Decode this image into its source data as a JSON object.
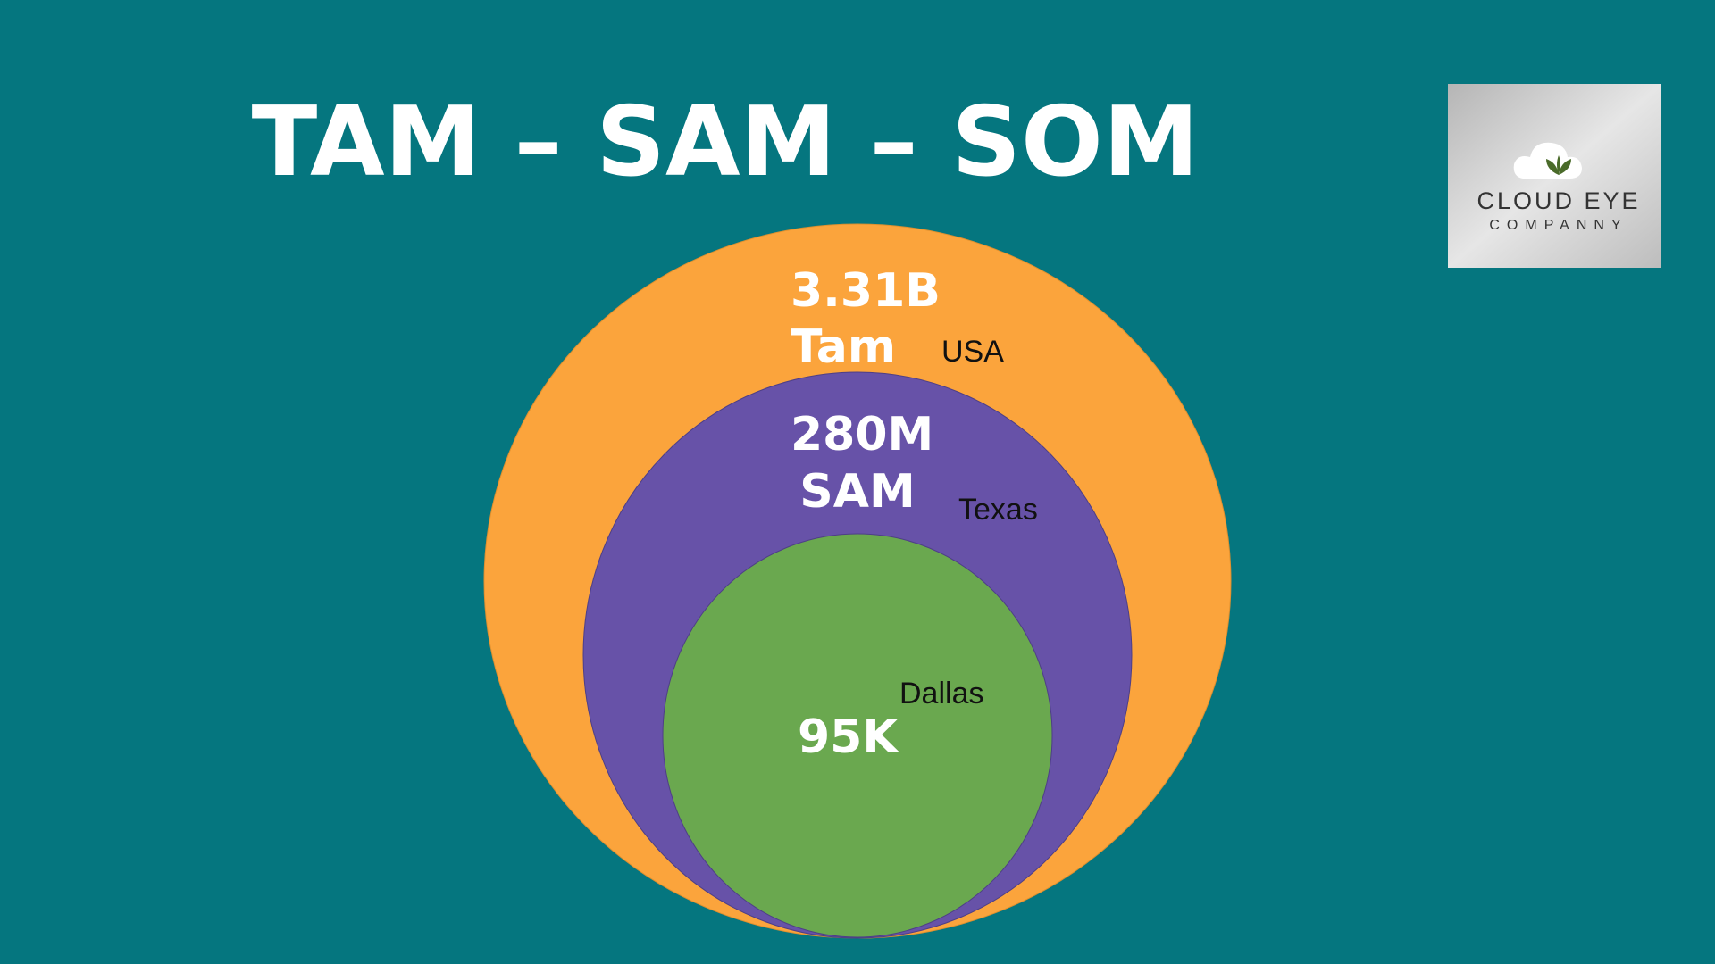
{
  "title": "TAM – SAM – SOM",
  "logo": {
    "line1": "CLOUD EYE",
    "line2": "COMPANNY"
  },
  "circles": [
    {
      "value": "3.31B",
      "label": "Tam",
      "region": "USA"
    },
    {
      "value": "280M",
      "label": "SAM",
      "region": "Texas"
    },
    {
      "value": "95K",
      "region": "Dallas"
    }
  ]
}
